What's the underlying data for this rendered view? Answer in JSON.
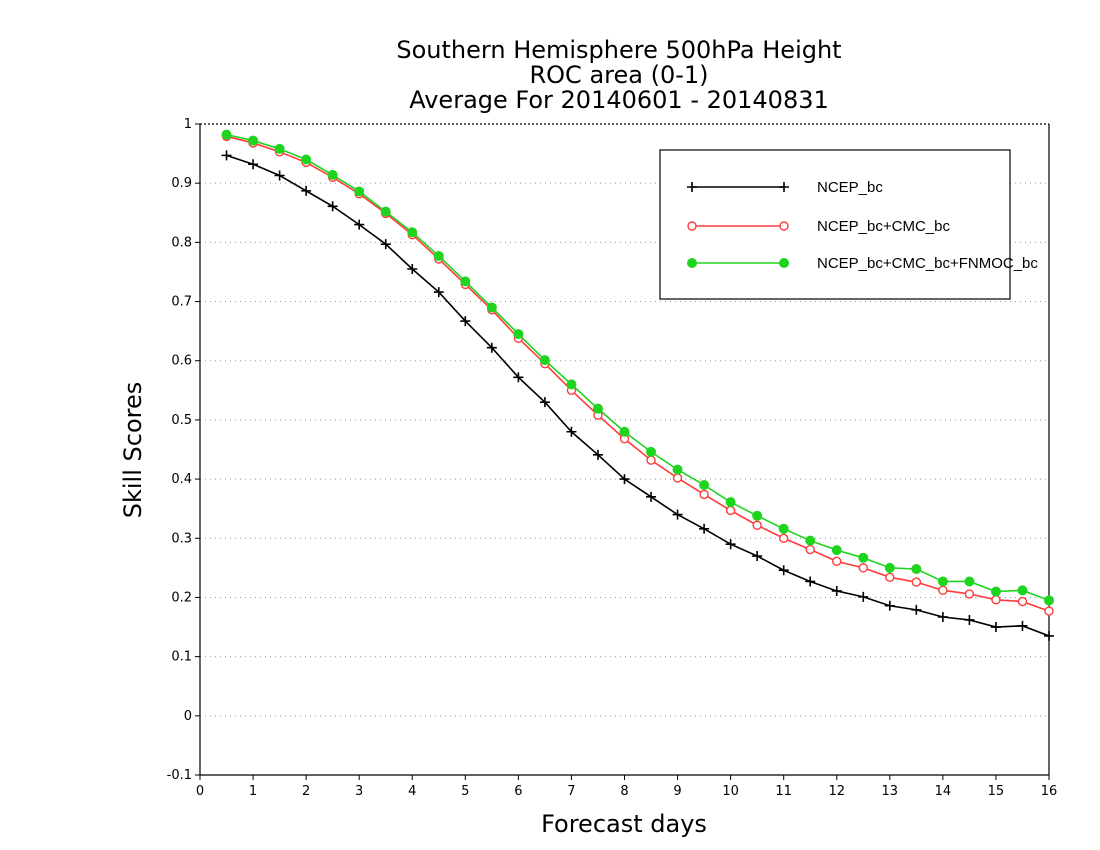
{
  "chart_data": {
    "type": "line",
    "title": [
      "Southern Hemisphere 500hPa Height",
      "ROC area (0-1)",
      "Average For 20140601 - 20140831"
    ],
    "xlabel": "Forecast days",
    "ylabel": "Skill Scores",
    "xlim": [
      0,
      16
    ],
    "ylim": [
      -0.1,
      1
    ],
    "x_ticks": [
      0,
      1,
      2,
      3,
      4,
      5,
      6,
      7,
      8,
      9,
      10,
      11,
      12,
      13,
      14,
      15,
      16
    ],
    "y_ticks": [
      -0.1,
      0,
      0.1,
      0.2,
      0.3,
      0.4,
      0.5,
      0.6,
      0.7,
      0.8,
      0.9,
      1
    ],
    "y_tick_labels": [
      "-0.1",
      "0",
      "0.1",
      "0.2",
      "0.3",
      "0.4",
      "0.5",
      "0.6",
      "0.7",
      "0.8",
      "0.9",
      "1"
    ],
    "grid": "horizontal dotted",
    "legend_position": "top-right",
    "x": [
      0.5,
      1,
      1.5,
      2,
      2.5,
      3,
      3.5,
      4,
      4.5,
      5,
      5.5,
      6,
      6.5,
      7,
      7.5,
      8,
      8.5,
      9,
      9.5,
      10,
      10.5,
      11,
      11.5,
      12,
      12.5,
      13,
      13.5,
      14,
      14.5,
      15,
      15.5,
      16
    ],
    "series": [
      {
        "name": "NCEP_bc",
        "color": "#000000",
        "marker": "plus",
        "values": [
          0.947,
          0.932,
          0.913,
          0.887,
          0.861,
          0.83,
          0.797,
          0.755,
          0.716,
          0.667,
          0.622,
          0.572,
          0.53,
          0.48,
          0.441,
          0.4,
          0.37,
          0.34,
          0.316,
          0.29,
          0.27,
          0.246,
          0.227,
          0.211,
          0.201,
          0.186,
          0.179,
          0.167,
          0.162,
          0.15,
          0.152,
          0.135
        ]
      },
      {
        "name": "NCEP_bc+CMC_bc",
        "color": "#ff3b3b",
        "marker": "open-circle",
        "values": [
          0.979,
          0.968,
          0.953,
          0.935,
          0.91,
          0.882,
          0.849,
          0.813,
          0.772,
          0.729,
          0.686,
          0.638,
          0.595,
          0.55,
          0.508,
          0.468,
          0.432,
          0.402,
          0.374,
          0.347,
          0.322,
          0.3,
          0.281,
          0.261,
          0.25,
          0.234,
          0.226,
          0.212,
          0.206,
          0.196,
          0.193,
          0.177
        ]
      },
      {
        "name": "NCEP_bc+CMC_bc+FNMOC_bc",
        "color": "#1fd41f",
        "marker": "filled-circle",
        "values": [
          0.982,
          0.972,
          0.958,
          0.94,
          0.914,
          0.886,
          0.852,
          0.817,
          0.777,
          0.734,
          0.69,
          0.645,
          0.601,
          0.56,
          0.519,
          0.48,
          0.446,
          0.416,
          0.39,
          0.361,
          0.338,
          0.316,
          0.296,
          0.28,
          0.267,
          0.25,
          0.248,
          0.227,
          0.227,
          0.21,
          0.212,
          0.195
        ]
      }
    ]
  }
}
